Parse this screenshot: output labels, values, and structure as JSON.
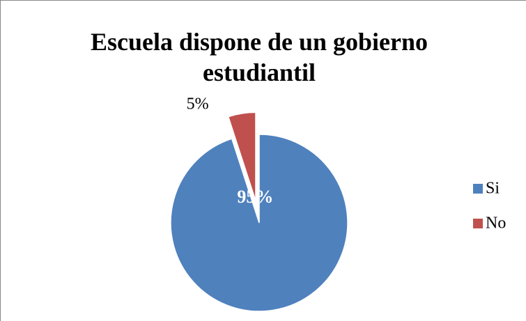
{
  "chart_data": {
    "type": "pie",
    "title": "Escuela dispone de un gobierno estudiantil",
    "categories": [
      "Si",
      "No"
    ],
    "values": [
      95,
      5
    ],
    "value_labels": [
      "95%",
      "5%"
    ],
    "colors": [
      "#4f81bd",
      "#c0504d"
    ],
    "exploded": [
      false,
      true
    ],
    "legend": "right"
  }
}
